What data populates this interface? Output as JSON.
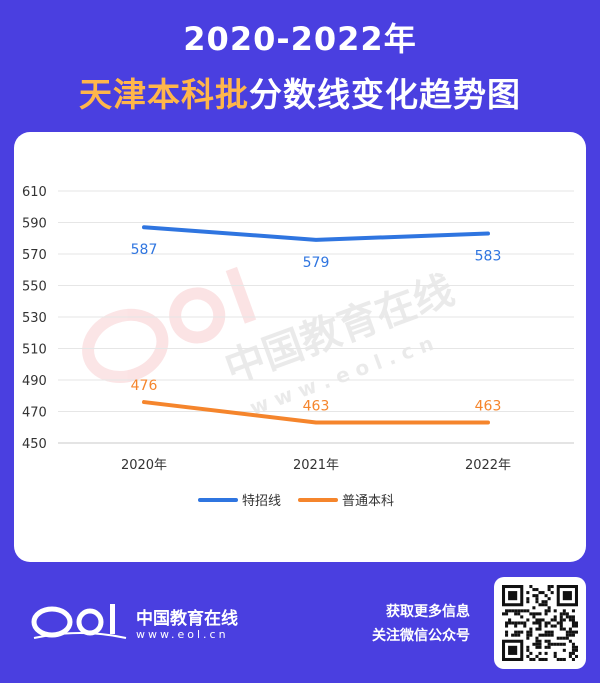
{
  "header": {
    "title_line1": "2020-2022年",
    "title_line2_accent": "天津本科批",
    "title_line2_rest": "分数线变化趋势图"
  },
  "watermark": {
    "text": "中国教育在线",
    "url": "w w w . e o l . c n"
  },
  "colors": {
    "background": "#4a3fe0",
    "series_special": "#2f75e0",
    "series_regular": "#f5852c",
    "accent": "#ffb64a"
  },
  "chart_data": {
    "type": "line",
    "categories": [
      "2020年",
      "2021年",
      "2022年"
    ],
    "series": [
      {
        "name": "特招线",
        "values": [
          587,
          579,
          583
        ],
        "color": "#2f75e0"
      },
      {
        "name": "普通本科",
        "values": [
          476,
          463,
          463
        ],
        "color": "#f5852c"
      }
    ],
    "yticks": [
      450,
      470,
      490,
      510,
      530,
      550,
      570,
      590,
      610
    ],
    "ylim": [
      450,
      610
    ],
    "grid": true,
    "legend_position": "bottom"
  },
  "footer": {
    "brand_name": "中国教育在线",
    "brand_url": "www.eol.cn",
    "line1": "获取更多信息",
    "line2": "关注微信公众号"
  }
}
